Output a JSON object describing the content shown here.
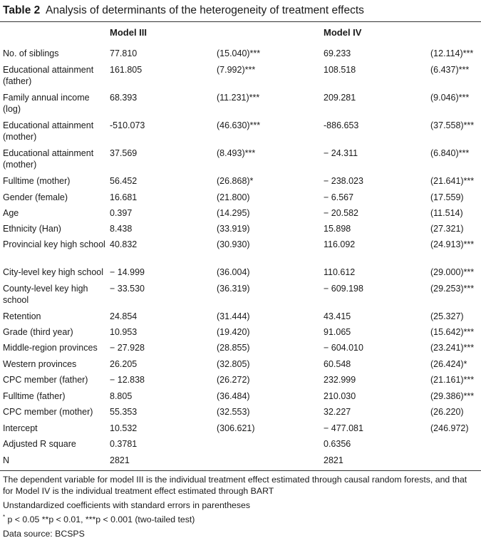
{
  "table": {
    "label": "Table 2",
    "title": "Analysis of determinants of the heterogeneity of treatment effects",
    "headers": {
      "model3": "Model III",
      "model4": "Model IV"
    },
    "rows": [
      {
        "label": "No. of siblings",
        "m3": "77.810",
        "s3": "(15.040)***",
        "m4": "69.233",
        "s4": "(12.114)***"
      },
      {
        "label": "Educational attainment (father)",
        "m3": "161.805",
        "s3": "(7.992)***",
        "m4": "108.518",
        "s4": "(6.437)***"
      },
      {
        "label": "Family annual income (log)",
        "m3": "68.393",
        "s3": "(11.231)***",
        "m4": "209.281",
        "s4": "(9.046)***"
      },
      {
        "label": "Educational attainment (mother)",
        "m3": "-510.073",
        "s3": "(46.630)***",
        "m4": "-886.653",
        "s4": "(37.558)***"
      },
      {
        "label": "Educational attainment (mother)",
        "m3": "37.569",
        "s3": "(8.493)***",
        "m4": "− 24.311",
        "s4": "(6.840)***"
      },
      {
        "label": "Fulltime (mother)",
        "m3": "56.452",
        "s3": "(26.868)*",
        "m4": "− 238.023",
        "s4": "(21.641)***"
      },
      {
        "label": "Gender (female)",
        "m3": "16.681",
        "s3": "(21.800)",
        "m4": "− 6.567",
        "s4": "(17.559)"
      },
      {
        "label": "Age",
        "m3": "0.397",
        "s3": "(14.295)",
        "m4": "− 20.582",
        "s4": "(11.514)"
      },
      {
        "label": "Ethnicity (Han)",
        "m3": "8.438",
        "s3": "(33.919)",
        "m4": "15.898",
        "s4": "(27.321)"
      },
      {
        "label": "Provincial key high school",
        "m3": "40.832",
        "s3": "(30.930)",
        "m4": "116.092",
        "s4": "(24.913)***"
      },
      {
        "label": "City-level key high school",
        "m3": "− 14.999",
        "s3": "(36.004)",
        "m4": "110.612",
        "s4": "(29.000)***"
      },
      {
        "label": "County-level key high school",
        "m3": "− 33.530",
        "s3": "(36.319)",
        "m4": "− 609.198",
        "s4": "(29.253)***"
      },
      {
        "label": "Retention",
        "m3": "24.854",
        "s3": "(31.444)",
        "m4": "43.415",
        "s4": "(25.327)"
      },
      {
        "label": "Grade (third year)",
        "m3": "10.953",
        "s3": "(19.420)",
        "m4": "91.065",
        "s4": "(15.642)***"
      },
      {
        "label": "Middle-region provinces",
        "m3": "− 27.928",
        "s3": "(28.855)",
        "m4": "− 604.010",
        "s4": "(23.241)***"
      },
      {
        "label": "Western provinces",
        "m3": "26.205",
        "s3": "(32.805)",
        "m4": "60.548",
        "s4": "(26.424)*"
      },
      {
        "label": "CPC member (father)",
        "m3": "− 12.838",
        "s3": "(26.272)",
        "m4": "232.999",
        "s4": "(21.161)***"
      },
      {
        "label": "Fulltime (father)",
        "m3": "8.805",
        "s3": "(36.484)",
        "m4": "210.030",
        "s4": "(29.386)***"
      },
      {
        "label": "CPC member (mother)",
        "m3": "55.353",
        "s3": "(32.553)",
        "m4": "32.227",
        "s4": "(26.220)"
      },
      {
        "label": "Intercept",
        "m3": "10.532",
        "s3": "(306.621)",
        "m4": "− 477.081",
        "s4": "(246.972)"
      },
      {
        "label": "Adjusted R square",
        "m3": "0.3781",
        "s3": "",
        "m4": "0.6356",
        "s4": ""
      },
      {
        "label": "N",
        "m3": "2821",
        "s3": "",
        "m4": "2821",
        "s4": ""
      }
    ]
  },
  "notes": {
    "dependent": "The dependent variable for model III is the individual treatment effect estimated through causal random forests, and that for Model IV is the individual treatment effect estimated through BART",
    "coefficients": "Unstandardized coefficients with standard errors in parentheses",
    "significance_star": "*",
    "significance": " p < 0.05 **p < 0.01, ***p < 0.001 (two-tailed test)",
    "source": "Data source: BCSPS"
  }
}
